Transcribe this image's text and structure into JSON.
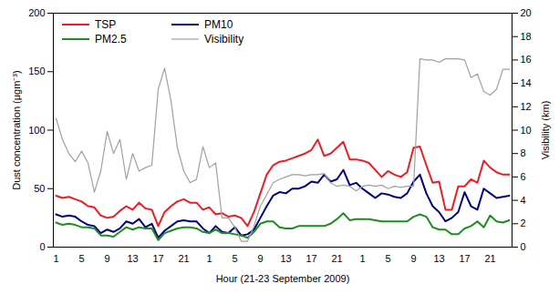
{
  "chart_data": {
    "type": "line",
    "x_label": "Hour (21-23 September 2009)",
    "y_label": "Dust concentration (μgm⁻³)",
    "y2_label": "Visibility (km)",
    "categories": [
      1,
      null,
      null,
      null,
      5,
      null,
      null,
      null,
      9,
      null,
      null,
      null,
      13,
      null,
      null,
      null,
      17,
      null,
      null,
      null,
      21,
      null,
      null,
      null,
      1,
      null,
      null,
      null,
      5,
      null,
      null,
      null,
      9,
      null,
      null,
      null,
      13,
      null,
      null,
      null,
      17,
      null,
      null,
      null,
      21,
      null,
      null,
      null,
      1,
      null,
      null,
      null,
      5,
      null,
      null,
      null,
      9,
      null,
      null,
      null,
      13,
      null,
      null,
      null,
      17,
      null,
      null,
      null,
      21,
      null,
      null,
      null
    ],
    "ylim": [
      0,
      200
    ],
    "yticks": [
      0,
      50,
      100,
      150,
      200
    ],
    "y2lim": [
      0,
      20
    ],
    "y2ticks": [
      0,
      2,
      4,
      6,
      8,
      10,
      12,
      14,
      16,
      18,
      20
    ],
    "legend": "upper left",
    "grid": false,
    "series": [
      {
        "name": "TSP",
        "color": "#ee1c25",
        "values": [
          44,
          42,
          43,
          41,
          39,
          35,
          34,
          27,
          25,
          26,
          31,
          35,
          32,
          38,
          33,
          32,
          18,
          30,
          35,
          39,
          41,
          38,
          38,
          32,
          34,
          28,
          29,
          26,
          27,
          25,
          18,
          30,
          46,
          62,
          70,
          73,
          74,
          76,
          78,
          80,
          83,
          92,
          78,
          80,
          85,
          90,
          75,
          75,
          74,
          72,
          66,
          60,
          65,
          62,
          60,
          64,
          85,
          86,
          70,
          55,
          56,
          32,
          32,
          52,
          52,
          58,
          55,
          74,
          68,
          64,
          62,
          62
        ]
      },
      {
        "name": "PM10",
        "color": "#000080",
        "values": [
          28,
          26,
          27,
          26,
          22,
          19,
          18,
          12,
          15,
          13,
          16,
          22,
          20,
          24,
          17,
          20,
          8,
          14,
          18,
          22,
          23,
          22,
          22,
          16,
          12,
          18,
          13,
          12,
          17,
          10,
          11,
          15,
          25,
          35,
          44,
          47,
          46,
          50,
          50,
          52,
          56,
          55,
          62,
          56,
          58,
          66,
          53,
          55,
          50,
          46,
          42,
          46,
          45,
          43,
          42,
          46,
          56,
          62,
          46,
          35,
          30,
          22,
          25,
          30,
          47,
          35,
          32,
          50,
          46,
          42,
          43,
          44
        ]
      },
      {
        "name": "PM2.5",
        "color": "#1e8c1e",
        "values": [
          21,
          19,
          20,
          19,
          17,
          17,
          16,
          10,
          10,
          9,
          13,
          17,
          15,
          17,
          16,
          16,
          6,
          12,
          14,
          16,
          17,
          17,
          16,
          13,
          12,
          15,
          12,
          12,
          11,
          10,
          8,
          13,
          20,
          22,
          22,
          17,
          16,
          16,
          18,
          18,
          18,
          18,
          18,
          20,
          24,
          29,
          23,
          24,
          24,
          24,
          23,
          22,
          22,
          22,
          22,
          22,
          26,
          28,
          26,
          17,
          15,
          15,
          11,
          11,
          16,
          18,
          22,
          17,
          27,
          22,
          21,
          23
        ]
      },
      {
        "name": "Visibility",
        "color": "#a0a0a0",
        "axis": "y2",
        "values": [
          11,
          9.2,
          8,
          7.3,
          8.2,
          7.2,
          4.7,
          6.5,
          9.9,
          8,
          9.2,
          5.8,
          8,
          6.5,
          6.8,
          7,
          13.5,
          15.3,
          12.5,
          8.5,
          6.5,
          5.5,
          5.8,
          8.6,
          6.8,
          7.2,
          2.5,
          2.5,
          1.7,
          0.5,
          0.5,
          1.8,
          3.5,
          4.5,
          5.5,
          5.8,
          6,
          6.2,
          6.2,
          6.1,
          6.2,
          6.2,
          6.3,
          5.5,
          5.2,
          5.3,
          5.2,
          4.8,
          5.2,
          5.3,
          5.2,
          5.3,
          5.0,
          5.2,
          5.1,
          5.2,
          5.2,
          16.1,
          16,
          16,
          15.8,
          16.1,
          16.1,
          16.1,
          16,
          14.5,
          14.8,
          13.3,
          13,
          13.5,
          15.2,
          15.2
        ]
      }
    ]
  }
}
